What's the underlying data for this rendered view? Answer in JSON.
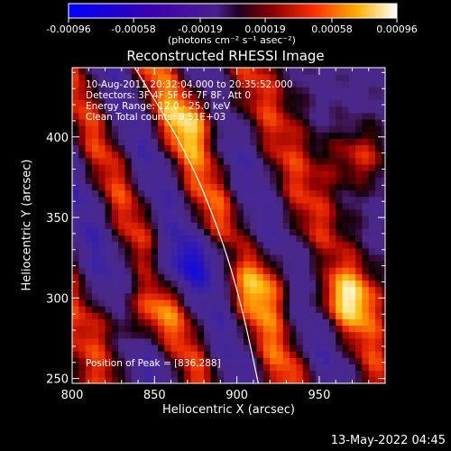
{
  "chart_data": {
    "type": "heatmap",
    "title": "Reconstructed RHESSI Image",
    "xlabel": "Heliocentric X (arcsec)",
    "ylabel": "Heliocentric Y (arcsec)",
    "xlim": [
      800,
      990
    ],
    "ylim": [
      247,
      443
    ],
    "x_ticks": [
      "800",
      "850",
      "900",
      "950"
    ],
    "y_ticks": [
      "250",
      "300",
      "350",
      "400"
    ],
    "colorbar": {
      "range": [
        -0.00096,
        0.00096
      ],
      "ticks": [
        "-0.00096",
        "-0.00058",
        "-0.00019",
        "0.00019",
        "0.00058",
        "0.00096"
      ],
      "unit_label": "(photons cm⁻² s⁻¹ asec⁻²)"
    },
    "info_lines": [
      "10-Aug-2011 20:32:04.000 to 20:35:52.000",
      "Detectors: 3F 4F 5F 6F 7F 8F, Att 0",
      "Energy Range: 12.0 - 25.0 keV",
      "Clean     Total counts: 9.51E+03"
    ],
    "peak_label": "Position of Peak = [836,288]",
    "peak": [
      836,
      288
    ],
    "limb_points": [
      [
        838,
        443
      ],
      [
        870,
        390
      ],
      [
        890,
        340
      ],
      [
        903,
        295
      ],
      [
        913,
        247
      ]
    ],
    "features": [
      {
        "x": 838,
        "y": 288,
        "value": 0.00096,
        "label": "hot"
      },
      {
        "x": 925,
        "y": 312,
        "value": 0.0009,
        "label": "hot"
      },
      {
        "x": 975,
        "y": 388,
        "value": 0.00085,
        "label": "hot"
      },
      {
        "x": 968,
        "y": 300,
        "value": 0.00085,
        "label": "hot"
      },
      {
        "x": 877,
        "y": 412,
        "value": 0.00075,
        "label": "hot"
      },
      {
        "x": 860,
        "y": 318,
        "value": -0.0008,
        "label": "cold"
      },
      {
        "x": 890,
        "y": 325,
        "value": -0.0007,
        "label": "cold"
      },
      {
        "x": 945,
        "y": 318,
        "value": -0.0006,
        "label": "cold"
      }
    ]
  },
  "footer_date": "13-May-2022 04:45"
}
